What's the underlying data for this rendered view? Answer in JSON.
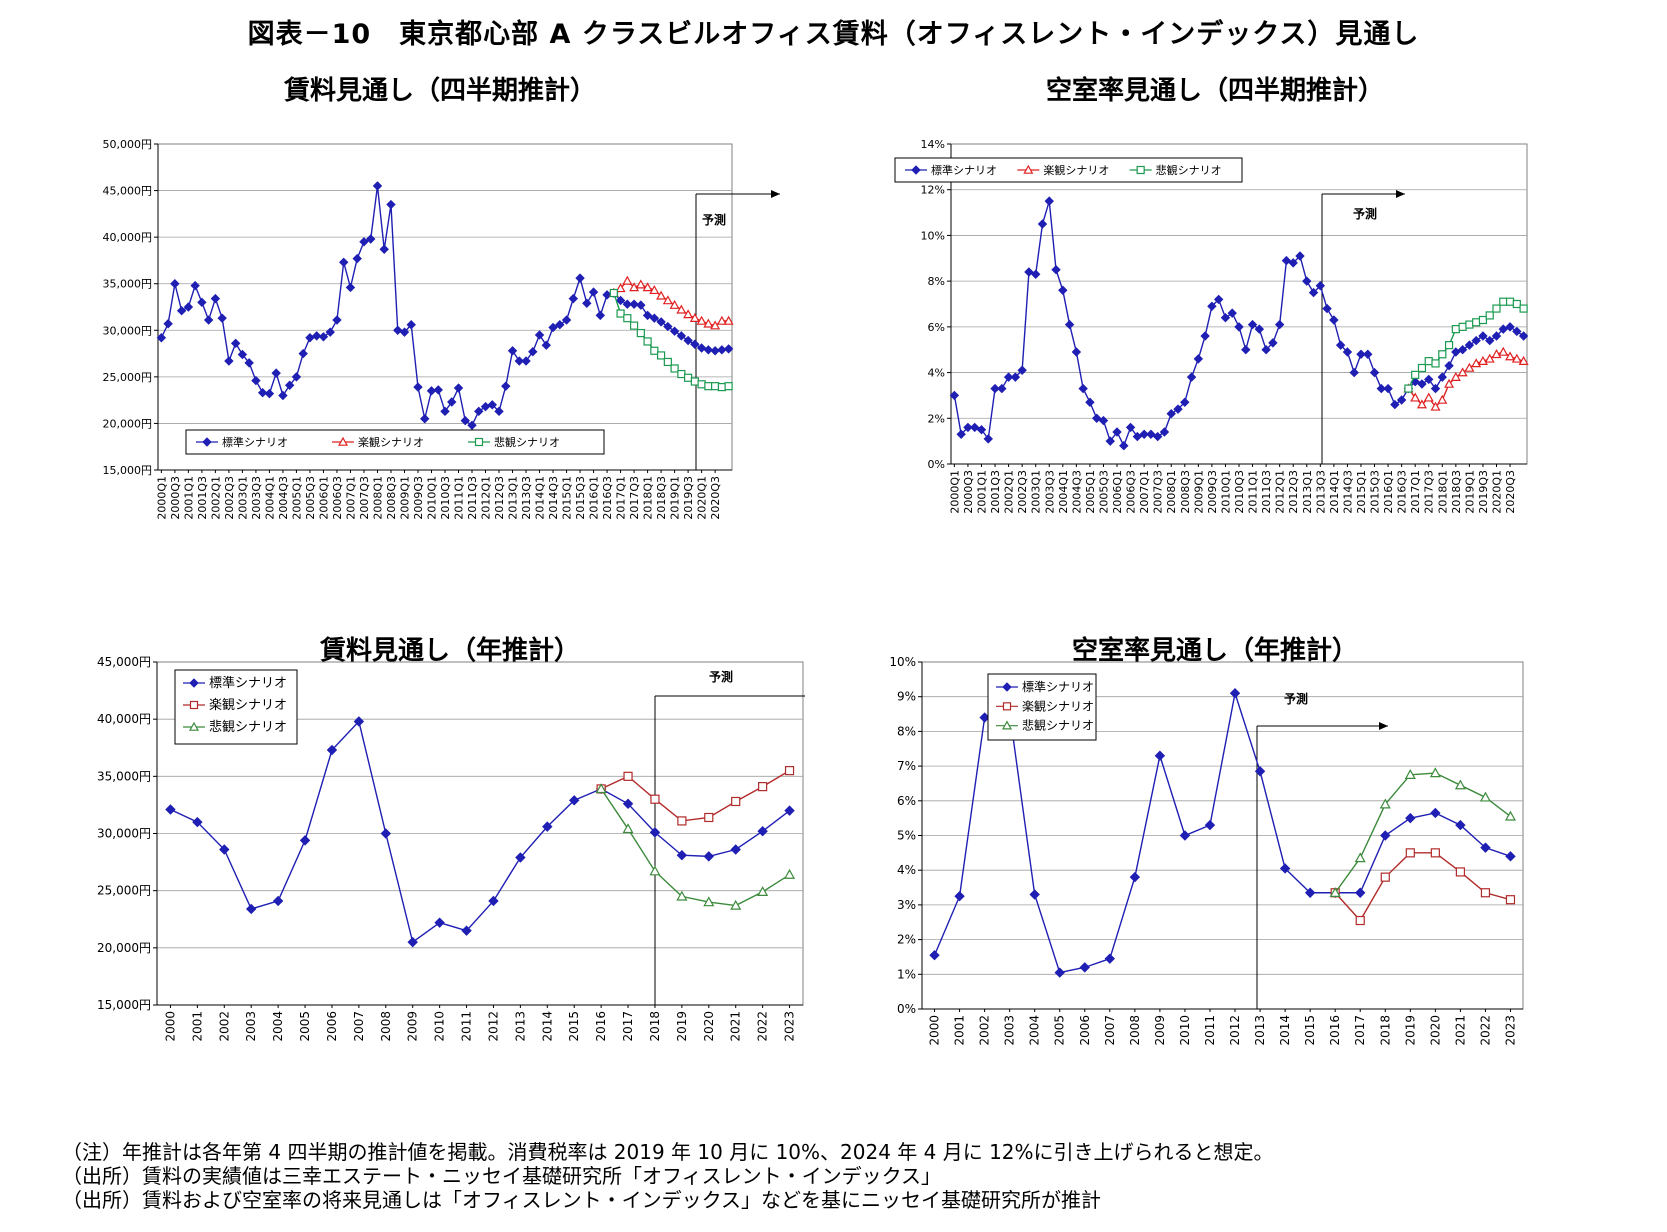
{
  "page": {
    "title": "図表－10　東京都心部 A クラスビルオフィス賃料（オフィスレント・インデックス）見通し",
    "notes": [
      "（注）年推計は各年第 4 四半期の推計値を掲載。消費税率は 2019 年 10 月に 10%、2024 年 4 月に 12%に引き上げられると想定。",
      "（出所）賃料の実績値は三幸エステート・ニッセイ基礎研究所「オフィスレント・インデックス」",
      "（出所）賃料および空室率の将来見通しは「オフィスレント・インデックス」などを基にニッセイ基礎研究所が推計"
    ]
  },
  "chart_data": [
    {
      "id": "rent_q",
      "type": "line",
      "title": "賃料見通し（四半期推計）",
      "annotation": "予測",
      "forecast_start": "2017Q1",
      "legend_position": "bottom-left",
      "ylim": [
        15000,
        50000
      ],
      "y_ticks": [
        "15,000円",
        "20,000円",
        "25,000円",
        "30,000円",
        "35,000円",
        "40,000円",
        "45,000円",
        "50,000円"
      ],
      "x_ticks": [
        "2000Q1",
        "2000Q3",
        "2001Q1",
        "2001Q3",
        "2002Q1",
        "2002Q3",
        "2003Q1",
        "2003Q3",
        "2004Q1",
        "2004Q3",
        "2005Q1",
        "2005Q3",
        "2006Q1",
        "2006Q3",
        "2007Q1",
        "2007Q3",
        "2008Q1",
        "2008Q3",
        "2009Q1",
        "2009Q3",
        "2010Q1",
        "2010Q3",
        "2011Q1",
        "2011Q3",
        "2012Q1",
        "2012Q3",
        "2013Q1",
        "2013Q3",
        "2014Q1",
        "2014Q3",
        "2015Q1",
        "2015Q3",
        "2016Q1",
        "2016Q3",
        "2017Q1",
        "2017Q3",
        "2018Q1",
        "2018Q3",
        "2019Q1",
        "2019Q3",
        "2020Q1",
        "2020Q3"
      ],
      "series": [
        {
          "name": "標準シナリオ",
          "color": "#1f1fb4",
          "marker": "diamond",
          "start": 0,
          "values": [
            29200,
            30700,
            35000,
            32100,
            32500,
            34800,
            33000,
            31100,
            33400,
            31300,
            26700,
            28600,
            27400,
            26500,
            24600,
            23300,
            23200,
            25400,
            23000,
            24100,
            25000,
            27500,
            29200,
            29400,
            29300,
            29800,
            31100,
            37300,
            34600,
            37700,
            39500,
            39800,
            45500,
            38700,
            43500,
            30000,
            29800,
            30600,
            23900,
            20500,
            23500,
            23600,
            21300,
            22300,
            23800,
            20300,
            19800,
            21300,
            21800,
            22000,
            21300,
            24000,
            27800,
            26700,
            26700,
            27700,
            29500,
            28400,
            30300,
            30600,
            31100,
            33400,
            35600,
            32900,
            34100,
            31600,
            33800,
            34000,
            33200,
            32800,
            32800,
            32700,
            31600,
            31300,
            30900,
            30400,
            29900,
            29400,
            28900,
            28500,
            28100,
            27900,
            27800,
            27900,
            28000
          ]
        },
        {
          "name": "楽観シナリオ",
          "color": "#e02020",
          "marker": "triangle",
          "start": 67,
          "values": [
            34000,
            34500,
            35300,
            34600,
            34900,
            34600,
            34300,
            33700,
            33200,
            32700,
            32200,
            31700,
            31300,
            31000,
            30700,
            30500,
            31000,
            31000
          ]
        },
        {
          "name": "悲観シナリオ",
          "color": "#1a9a50",
          "marker": "square",
          "start": 67,
          "values": [
            34000,
            31800,
            31300,
            30500,
            29700,
            28800,
            27800,
            27300,
            26600,
            25900,
            25300,
            24900,
            24500,
            24200,
            24000,
            24000,
            23900,
            24000
          ]
        }
      ]
    },
    {
      "id": "vac_q",
      "type": "line",
      "title": "空室率見通し（四半期推計）",
      "annotation": "予測",
      "forecast_start": "2017Q1",
      "legend_position": "top-left",
      "ylim": [
        0,
        14
      ],
      "y_ticks": [
        "0%",
        "2%",
        "4%",
        "6%",
        "8%",
        "10%",
        "12%",
        "14%"
      ],
      "x_ticks": [
        "2000Q1",
        "2000Q3",
        "2001Q1",
        "2001Q3",
        "2002Q1",
        "2002Q3",
        "2003Q1",
        "2003Q3",
        "2004Q1",
        "2004Q3",
        "2005Q1",
        "2005Q3",
        "2006Q1",
        "2006Q3",
        "2007Q1",
        "2007Q3",
        "2008Q1",
        "2008Q3",
        "2009Q1",
        "2009Q3",
        "2010Q1",
        "2010Q3",
        "2011Q1",
        "2011Q3",
        "2012Q1",
        "2012Q3",
        "2013Q1",
        "2013Q3",
        "2014Q1",
        "2014Q3",
        "2015Q1",
        "2015Q3",
        "2016Q1",
        "2016Q3",
        "2017Q1",
        "2017Q3",
        "2018Q1",
        "2018Q3",
        "2019Q1",
        "2019Q3",
        "2020Q1",
        "2020Q3"
      ],
      "series": [
        {
          "name": "標準シナリオ",
          "color": "#1f1fb4",
          "marker": "diamond",
          "start": 0,
          "values": [
            3.0,
            1.3,
            1.6,
            1.6,
            1.5,
            1.1,
            3.3,
            3.3,
            3.8,
            3.8,
            4.1,
            8.4,
            8.3,
            10.5,
            11.5,
            8.5,
            7.6,
            6.1,
            4.9,
            3.3,
            2.7,
            2.0,
            1.9,
            1.0,
            1.4,
            0.8,
            1.6,
            1.2,
            1.3,
            1.3,
            1.2,
            1.4,
            2.2,
            2.4,
            2.7,
            3.8,
            4.6,
            5.6,
            6.9,
            7.2,
            6.4,
            6.6,
            6.0,
            5.0,
            6.1,
            5.9,
            5.0,
            5.3,
            6.1,
            8.9,
            8.8,
            9.1,
            8.0,
            7.5,
            7.8,
            6.8,
            6.3,
            5.2,
            4.9,
            4.0,
            4.8,
            4.8,
            4.0,
            3.3,
            3.3,
            2.6,
            2.8,
            3.3,
            3.6,
            3.5,
            3.7,
            3.3,
            3.8,
            4.3,
            4.9,
            5.0,
            5.2,
            5.4,
            5.6,
            5.4,
            5.6,
            5.9,
            6.0,
            5.8,
            5.6
          ]
        },
        {
          "name": "楽観シナリオ",
          "color": "#e02020",
          "marker": "triangle",
          "start": 67,
          "values": [
            3.3,
            2.9,
            2.6,
            2.9,
            2.5,
            2.8,
            3.5,
            3.8,
            4.0,
            4.2,
            4.4,
            4.5,
            4.6,
            4.8,
            4.9,
            4.7,
            4.6,
            4.5
          ]
        },
        {
          "name": "悲観シナリオ",
          "color": "#1a9a50",
          "marker": "square",
          "start": 67,
          "values": [
            3.3,
            3.9,
            4.2,
            4.5,
            4.4,
            4.8,
            5.2,
            5.9,
            6.0,
            6.1,
            6.2,
            6.3,
            6.5,
            6.8,
            7.1,
            7.1,
            7.0,
            6.8
          ]
        }
      ]
    },
    {
      "id": "rent_y",
      "type": "line",
      "title": "賃料見通し（年推計）",
      "annotation": "予測",
      "forecast_start": "2016",
      "legend_position": "top-left",
      "ylim": [
        15000,
        45000
      ],
      "y_ticks": [
        "15,000円",
        "20,000円",
        "25,000円",
        "30,000円",
        "35,000円",
        "40,000円",
        "45,000円"
      ],
      "x_ticks": [
        "2000",
        "2001",
        "2002",
        "2003",
        "2004",
        "2005",
        "2006",
        "2007",
        "2008",
        "2009",
        "2010",
        "2011",
        "2012",
        "2013",
        "2014",
        "2015",
        "2016",
        "2017",
        "2018",
        "2019",
        "2020",
        "2021",
        "2022",
        "2023"
      ],
      "series": [
        {
          "name": "標準シナリオ",
          "color": "#1f1fb4",
          "marker": "diamond",
          "start": 0,
          "values": [
            32100,
            31000,
            28600,
            23400,
            24100,
            29400,
            37300,
            39800,
            30000,
            20500,
            22200,
            21500,
            24100,
            27900,
            30600,
            32900,
            33900,
            32600,
            30100,
            28100,
            28000,
            28600,
            30200,
            32000
          ]
        },
        {
          "name": "楽観シナリオ",
          "color": "#b22b2b",
          "marker": "square",
          "start": 16,
          "values": [
            33900,
            35000,
            33000,
            31100,
            31400,
            32800,
            34100,
            35500
          ]
        },
        {
          "name": "悲観シナリオ",
          "color": "#3c8a3c",
          "marker": "triangle",
          "start": 16,
          "values": [
            33900,
            30400,
            26700,
            24500,
            24000,
            23700,
            24900,
            26400
          ]
        }
      ]
    },
    {
      "id": "vac_y",
      "type": "line",
      "title": "空室率見通し（年推計）",
      "annotation": "予測",
      "forecast_start": "2016",
      "legend_position": "top-left",
      "ylim": [
        0,
        10
      ],
      "y_ticks": [
        "0%",
        "1%",
        "2%",
        "3%",
        "4%",
        "5%",
        "6%",
        "7%",
        "8%",
        "9%",
        "10%"
      ],
      "x_ticks": [
        "2000",
        "2001",
        "2002",
        "2003",
        "2004",
        "2005",
        "2006",
        "2007",
        "2008",
        "2009",
        "2010",
        "2011",
        "2012",
        "2013",
        "2014",
        "2015",
        "2016",
        "2017",
        "2018",
        "2019",
        "2020",
        "2021",
        "2022",
        "2023"
      ],
      "series": [
        {
          "name": "標準シナリオ",
          "color": "#1f1fb4",
          "marker": "diamond",
          "start": 0,
          "values": [
            1.55,
            3.25,
            8.4,
            8.55,
            3.3,
            1.05,
            1.2,
            1.45,
            3.8,
            7.3,
            5.0,
            5.3,
            9.1,
            6.85,
            4.05,
            3.35,
            3.35,
            3.35,
            5.0,
            5.5,
            5.65,
            5.3,
            4.65,
            4.4
          ]
        },
        {
          "name": "楽観シナリオ",
          "color": "#b22b2b",
          "marker": "square",
          "start": 16,
          "values": [
            3.35,
            2.55,
            3.8,
            4.5,
            4.5,
            3.95,
            3.35,
            3.15
          ]
        },
        {
          "name": "悲観シナリオ",
          "color": "#3c8a3c",
          "marker": "triangle",
          "start": 16,
          "values": [
            3.35,
            4.35,
            5.9,
            6.75,
            6.8,
            6.45,
            6.1,
            5.55
          ]
        }
      ]
    }
  ]
}
